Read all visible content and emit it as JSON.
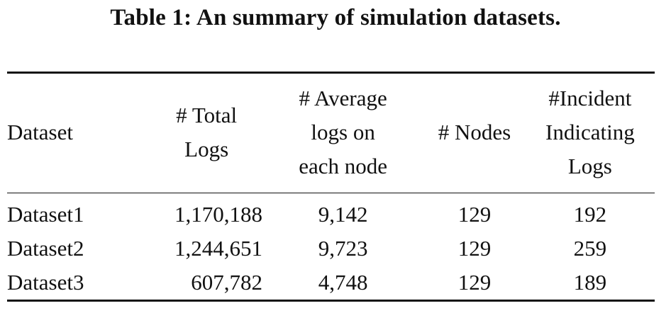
{
  "caption": "Table 1: An summary of simulation datasets.",
  "table": {
    "headers": {
      "dataset": [
        "Dataset"
      ],
      "total_logs": [
        "# Total",
        "Logs"
      ],
      "average_logs": [
        "# Average",
        "logs on",
        "each node"
      ],
      "nodes": [
        "# Nodes"
      ],
      "incident_logs": [
        "#Incident",
        "Indicating",
        "Logs"
      ]
    },
    "rows": [
      {
        "dataset": "Dataset1",
        "total_logs": "1,170,188",
        "average_logs": "9,142",
        "nodes": "129",
        "incident_logs": "192"
      },
      {
        "dataset": "Dataset2",
        "total_logs": "1,244,651",
        "average_logs": "9,723",
        "nodes": "129",
        "incident_logs": "259"
      },
      {
        "dataset": "Dataset3",
        "total_logs": "607,782",
        "average_logs": "4,748",
        "nodes": "129",
        "incident_logs": "189"
      }
    ]
  }
}
